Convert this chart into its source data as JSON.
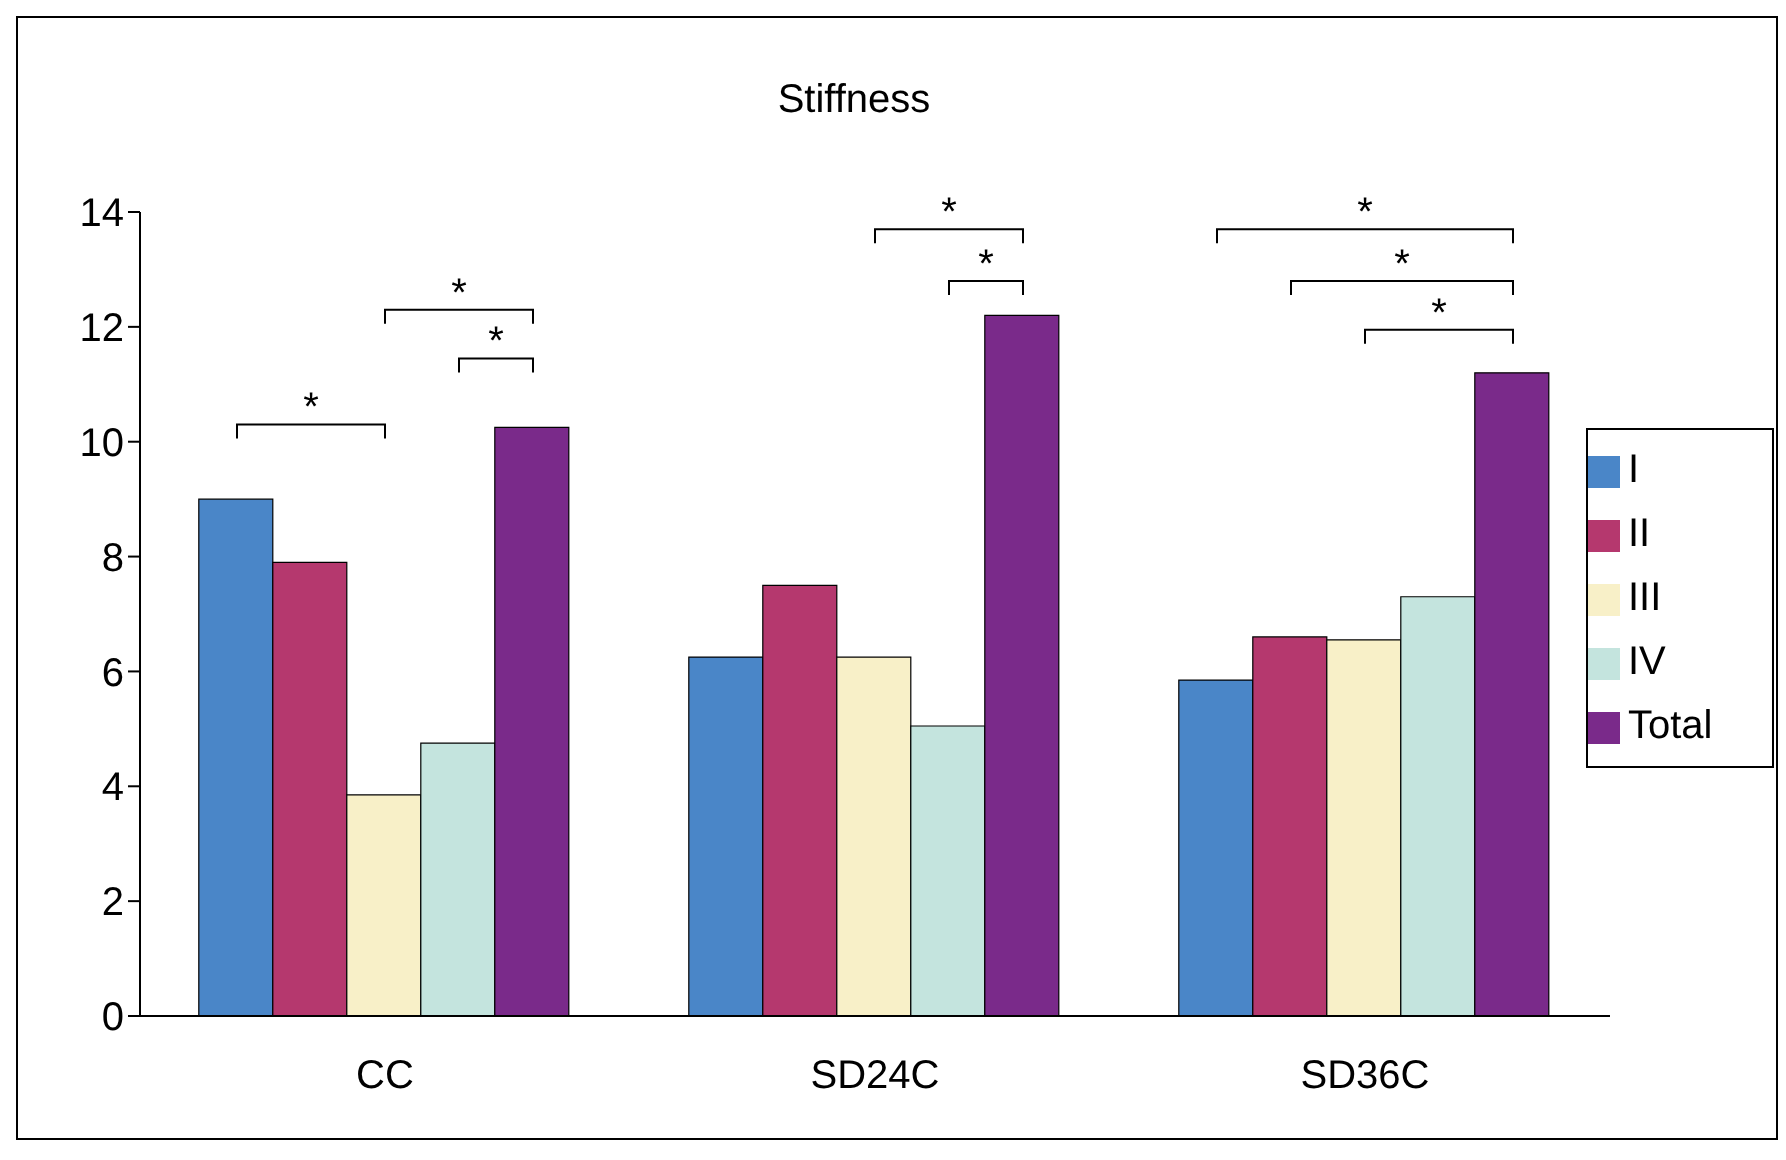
{
  "chart_data": {
    "type": "bar",
    "title": "Stiffness",
    "categories": [
      "CC",
      "SD24C",
      "SD36C"
    ],
    "series": [
      {
        "name": "I",
        "color": "#4a86c8",
        "values": [
          9.0,
          6.25,
          5.85
        ]
      },
      {
        "name": "II",
        "color": "#b5386e",
        "values": [
          7.9,
          7.5,
          6.6
        ]
      },
      {
        "name": "III",
        "color": "#f8f0c8",
        "values": [
          3.85,
          6.25,
          6.55
        ]
      },
      {
        "name": "IV",
        "color": "#c4e4de",
        "values": [
          4.75,
          5.05,
          7.3
        ]
      },
      {
        "name": "Total",
        "color": "#7a2a8a",
        "values": [
          10.25,
          12.2,
          11.2
        ]
      }
    ],
    "ylim": [
      0,
      14
    ],
    "yticks": [
      0,
      2,
      4,
      6,
      8,
      10,
      12,
      14
    ],
    "legend": "right",
    "annotations": [
      "*",
      "*",
      "*",
      "*",
      "*",
      "*",
      "*",
      "*"
    ]
  }
}
